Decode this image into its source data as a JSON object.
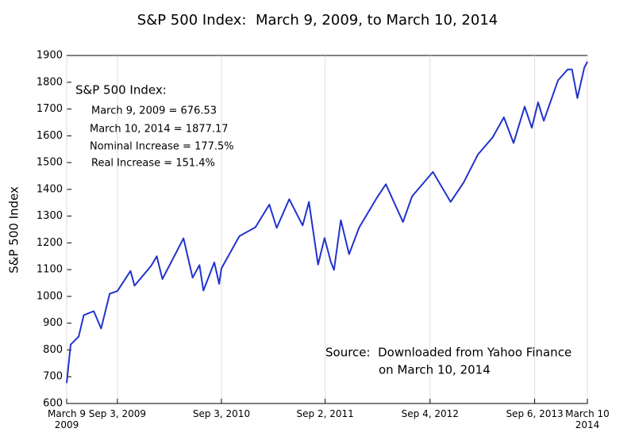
{
  "chart_data": {
    "type": "line",
    "title": "S&P 500 Index:  March 9, 2009, to March 10, 2014",
    "y_label": "S&P 500 Index",
    "annotations": {
      "summary": [
        "S&P 500 Index:",
        "March 9, 2009 = 676.53",
        "March 10, 2014 = 1877.17",
        "Nominal Increase = 177.5%",
        "Real Increase = 151.4%"
      ],
      "source": [
        "Source:  Downloaded from Yahoo Finance",
        "on March 10, 2014"
      ]
    },
    "x": [
      "2009-03-09",
      "2009-03-23",
      "2009-04-20",
      "2009-05-08",
      "2009-06-12",
      "2009-07-08",
      "2009-08-07",
      "2009-09-03",
      "2009-10-19",
      "2009-11-02",
      "2009-12-31",
      "2010-01-19",
      "2010-02-08",
      "2010-03-31",
      "2010-04-23",
      "2010-05-25",
      "2010-06-18",
      "2010-07-02",
      "2010-08-09",
      "2010-08-26",
      "2010-09-03",
      "2010-11-05",
      "2010-12-31",
      "2011-02-18",
      "2011-03-16",
      "2011-04-29",
      "2011-06-15",
      "2011-07-07",
      "2011-08-08",
      "2011-08-31",
      "2011-09-22",
      "2011-10-03",
      "2011-10-27",
      "2011-11-25",
      "2011-12-30",
      "2012-02-29",
      "2012-04-02",
      "2012-06-01",
      "2012-07-03",
      "2012-09-14",
      "2012-11-15",
      "2012-12-31",
      "2013-02-19",
      "2013-04-11",
      "2013-05-21",
      "2013-06-24",
      "2013-08-02",
      "2013-08-27",
      "2013-09-18",
      "2013-10-08",
      "2013-11-27",
      "2013-12-31",
      "2014-01-15",
      "2014-02-03",
      "2014-02-27",
      "2014-03-10"
    ],
    "series": [
      {
        "name": "S&P 500 Index",
        "color": "#2233cc",
        "values": [
          676.53,
          820,
          850,
          930,
          945,
          880,
          1010,
          1020,
          1095,
          1040,
          1115,
          1150,
          1065,
          1170,
          1217,
          1070,
          1117,
          1022,
          1127,
          1047,
          1105,
          1225,
          1258,
          1343,
          1256,
          1363,
          1265,
          1353,
          1119,
          1218,
          1129,
          1099,
          1285,
          1158,
          1257,
          1366,
          1419,
          1278,
          1374,
          1465,
          1353,
          1426,
          1530,
          1593,
          1669,
          1573,
          1709,
          1630,
          1725,
          1656,
          1807,
          1848,
          1848,
          1741,
          1854,
          1877.17
        ]
      }
    ],
    "xlim": [
      "2009-03-09",
      "2014-03-10"
    ],
    "xticks": [
      {
        "value": "2009-03-09",
        "label": "March 9 2009"
      },
      {
        "value": "2009-09-03",
        "label": "Sep 3, 2009"
      },
      {
        "value": "2010-09-03",
        "label": "Sep 3, 2010"
      },
      {
        "value": "2011-09-02",
        "label": "Sep 2, 2011"
      },
      {
        "value": "2012-09-04",
        "label": "Sep 4, 2012"
      },
      {
        "value": "2013-09-06",
        "label": "Sep 6, 2013"
      },
      {
        "value": "2014-03-10",
        "label": "March 10 2014"
      }
    ],
    "ylim": [
      600,
      1900
    ],
    "yticks": [
      600,
      700,
      800,
      900,
      1000,
      1100,
      1200,
      1300,
      1400,
      1500,
      1600,
      1700,
      1800,
      1900
    ],
    "grid": "x"
  }
}
